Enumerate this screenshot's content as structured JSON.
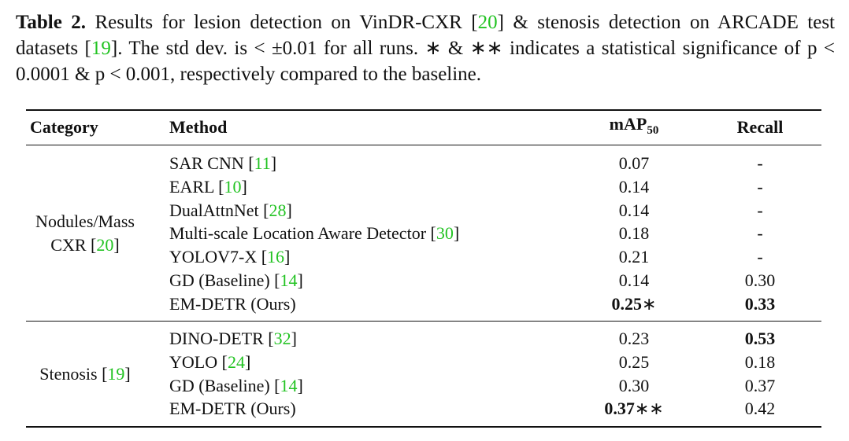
{
  "caption": {
    "label": "Table 2.",
    "text": "Results for lesion detection on VinDR-CXR [20] & stenosis detection on ARCADE test datasets [19]. The std dev. is < ±0.01 for all runs. ∗ & ∗∗ indicates a statistical significance of p < 0.0001 & p < 0.001, respectively compared to the baseline."
  },
  "table": {
    "header": {
      "category": "Category",
      "method": "Method",
      "map": {
        "text": "mAP",
        "sub": "50"
      },
      "recall": "Recall"
    },
    "groups": [
      {
        "category": [
          "Nodules/Mass",
          "CXR [20]"
        ],
        "rows": [
          {
            "method": "SAR CNN [11]",
            "map": "0.07",
            "recall": "-"
          },
          {
            "method": "EARL [10]",
            "map": "0.14",
            "recall": "-"
          },
          {
            "method": "DualAttnNet [28]",
            "map": "0.14",
            "recall": "-"
          },
          {
            "method": "Multi-scale Location Aware Detector [30]",
            "map": "0.18",
            "recall": "-"
          },
          {
            "method": "YOLOV7-X [16]",
            "map": "0.21",
            "recall": "-"
          },
          {
            "method": "GD (Baseline) [14]",
            "map": "0.14",
            "recall": "0.30"
          },
          {
            "method": "EM-DETR (Ours)",
            "map": "0.25",
            "map_sig": "∗",
            "map_bold": true,
            "recall": "0.33",
            "recall_bold": true
          }
        ]
      },
      {
        "category": [
          "Stenosis [19]"
        ],
        "rows": [
          {
            "method": "DINO-DETR [32]",
            "map": "0.23",
            "recall": "0.53",
            "recall_bold": true
          },
          {
            "method": "YOLO [24]",
            "map": "0.25",
            "recall": "0.18"
          },
          {
            "method": "GD (Baseline) [14]",
            "map": "0.30",
            "recall": "0.37"
          },
          {
            "method": "EM-DETR (Ours)",
            "map": "0.37",
            "map_sig": "∗∗",
            "map_bold": true,
            "recall": "0.42"
          }
        ]
      }
    ]
  }
}
